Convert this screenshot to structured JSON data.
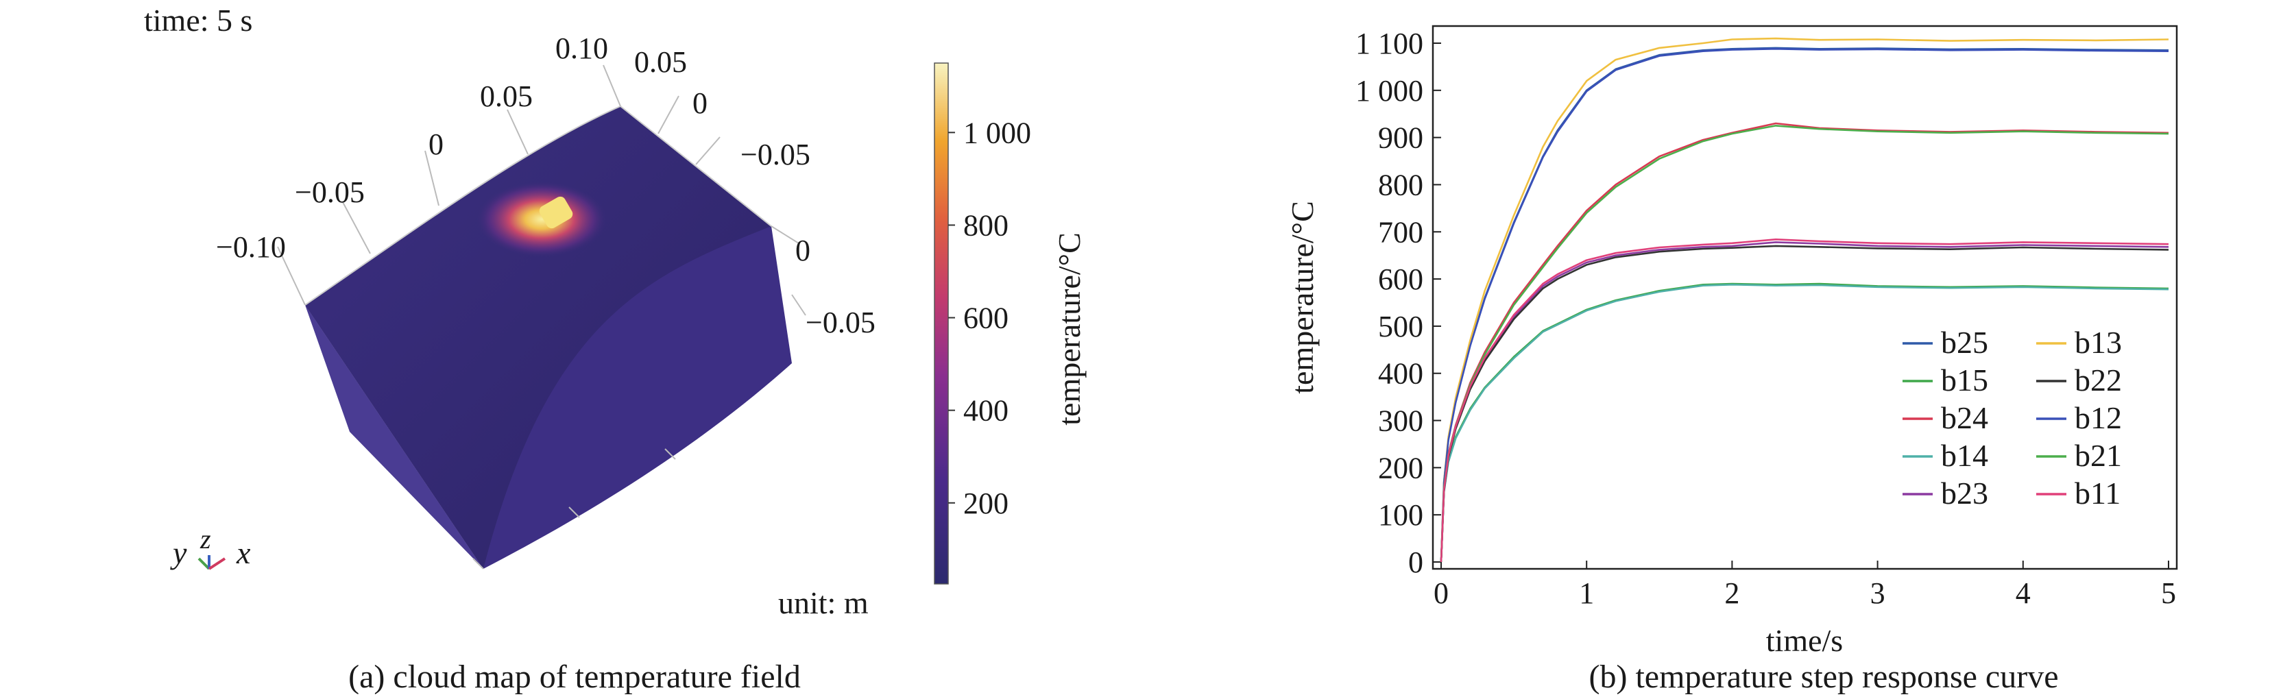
{
  "panel_a": {
    "time_label": "time: 5 s",
    "unit_label": "unit: m",
    "caption": "(a) cloud map of temperature field",
    "axis_labels": {
      "y": "y",
      "z": "z",
      "x": "x"
    },
    "top_edge_ticks": [
      "−0.10",
      "−0.05",
      "0",
      "0.05",
      "0.10"
    ],
    "right_edge_ticks": [
      "0.05",
      "0",
      "−0.05",
      "0",
      "−0.05"
    ],
    "colorbar": {
      "label": "temperature/°C",
      "ticks": [
        "200",
        "400",
        "600",
        "800",
        "1 000"
      ],
      "tick_values": [
        200,
        400,
        600,
        800,
        1000
      ],
      "min": 25,
      "max": 1150
    },
    "colors": {
      "body": "#3b2c79",
      "side": "#4a3b90",
      "hotspot": "#f6e27a"
    }
  },
  "chart_data": {
    "type": "line",
    "caption": "(b) temperature step response curve",
    "xlabel": "time/s",
    "ylabel": "temperature/°C",
    "xlim": [
      0,
      5
    ],
    "ylim": [
      0,
      1100
    ],
    "x_ticks": [
      0,
      1,
      2,
      3,
      4,
      5
    ],
    "x_tick_labels": [
      "0",
      "1",
      "2",
      "3",
      "4",
      "5"
    ],
    "y_ticks": [
      0,
      100,
      200,
      300,
      400,
      500,
      600,
      700,
      800,
      900,
      1000,
      1100
    ],
    "y_tick_labels": [
      "0",
      "100",
      "200",
      "300",
      "400",
      "500",
      "600",
      "700",
      "800",
      "900",
      "1 000",
      "1 100"
    ],
    "grid": false,
    "legend": {
      "placement": "bottom-right",
      "columns": 2
    },
    "x": [
      0,
      0.02,
      0.05,
      0.1,
      0.2,
      0.3,
      0.5,
      0.7,
      0.8,
      1.0,
      1.2,
      1.5,
      1.8,
      2.0,
      2.3,
      2.6,
      3.0,
      3.5,
      4.0,
      4.5,
      5.0
    ],
    "series": [
      {
        "name": "b25",
        "color": "#2f5aa8",
        "values": [
          0,
          170,
          260,
          340,
          460,
          560,
          720,
          860,
          915,
          1000,
          1045,
          1075,
          1085,
          1088,
          1090,
          1088,
          1089,
          1087,
          1088,
          1086,
          1085
        ]
      },
      {
        "name": "b15",
        "color": "#3fa84a",
        "values": [
          0,
          150,
          215,
          265,
          325,
          370,
          435,
          490,
          505,
          535,
          555,
          575,
          588,
          590,
          588,
          590,
          585,
          583,
          585,
          582,
          580
        ]
      },
      {
        "name": "b24",
        "color": "#d83a52",
        "values": [
          0,
          160,
          230,
          290,
          380,
          445,
          550,
          630,
          670,
          745,
          800,
          860,
          895,
          910,
          930,
          920,
          915,
          912,
          915,
          912,
          910
        ]
      },
      {
        "name": "b14",
        "color": "#4fb0a8",
        "values": [
          0,
          148,
          212,
          262,
          322,
          368,
          432,
          488,
          503,
          533,
          553,
          573,
          586,
          588,
          586,
          587,
          583,
          581,
          583,
          580,
          578
        ]
      },
      {
        "name": "b23",
        "color": "#8c3aa0",
        "values": [
          0,
          152,
          225,
          285,
          370,
          430,
          520,
          585,
          605,
          635,
          650,
          662,
          668,
          670,
          678,
          675,
          670,
          668,
          672,
          670,
          668
        ]
      },
      {
        "name": "b13",
        "color": "#f0c040",
        "values": [
          0,
          172,
          265,
          348,
          470,
          575,
          735,
          880,
          935,
          1020,
          1065,
          1090,
          1100,
          1108,
          1110,
          1107,
          1108,
          1105,
          1107,
          1106,
          1108
        ]
      },
      {
        "name": "b22",
        "color": "#333333",
        "values": [
          0,
          150,
          222,
          282,
          366,
          426,
          515,
          580,
          600,
          630,
          646,
          658,
          664,
          666,
          670,
          668,
          665,
          663,
          667,
          664,
          662
        ]
      },
      {
        "name": "b12",
        "color": "#3a50b8",
        "values": [
          0,
          169,
          258,
          338,
          458,
          558,
          718,
          858,
          912,
          998,
          1043,
          1073,
          1083,
          1086,
          1088,
          1086,
          1087,
          1085,
          1086,
          1084,
          1083
        ]
      },
      {
        "name": "b21",
        "color": "#4cae4c",
        "values": [
          0,
          158,
          228,
          288,
          376,
          440,
          545,
          625,
          665,
          740,
          795,
          855,
          892,
          908,
          925,
          918,
          913,
          910,
          913,
          910,
          908
        ]
      },
      {
        "name": "b11",
        "color": "#e0407a",
        "values": [
          0,
          153,
          226,
          287,
          372,
          433,
          524,
          590,
          610,
          640,
          655,
          667,
          673,
          676,
          684,
          680,
          676,
          674,
          678,
          676,
          674
        ]
      }
    ]
  }
}
